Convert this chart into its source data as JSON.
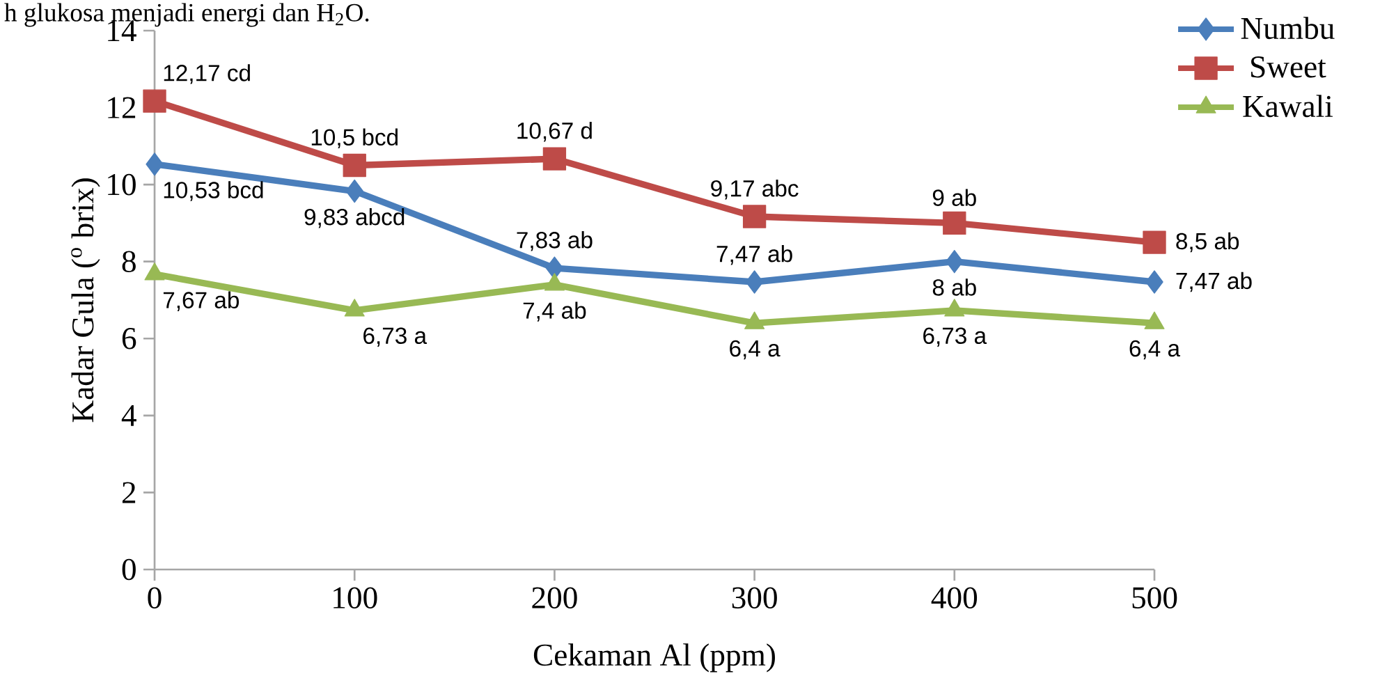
{
  "chart_data": {
    "type": "line",
    "xlabel": "Cekaman Al (ppm)",
    "ylabel": "Kadar Gula ($^{o}$ brix)",
    "annotations": [
      "h glukosa menjadi energi dan H$_{2}$O."
    ],
    "categories": [
      "0",
      "100",
      "200",
      "300",
      "400",
      "500"
    ],
    "ylim": [
      0,
      14
    ],
    "yticks": [
      0,
      2,
      4,
      6,
      8,
      10,
      12,
      14
    ],
    "grid": false,
    "legend": "top right",
    "line_style": "solid",
    "series": [
      {
        "name": "Numbu",
        "color": "#4a7ebb",
        "marker": "diamond",
        "values": [
          10.53,
          9.83,
          7.83,
          7.47,
          8,
          7.47
        ],
        "value_labels": [
          "10,53 bcd",
          "9,83 abcd",
          "7,83 ab",
          "7,47 ab",
          "8 ab",
          "7,47 ab"
        ]
      },
      {
        "name": "Sweet",
        "color": "#be4b48",
        "marker": "square",
        "values": [
          12.17,
          10.5,
          10.67,
          9.17,
          9,
          8.5
        ],
        "value_labels": [
          "12,17 cd",
          "10,5 bcd",
          "10,67 d",
          "9,17 abc",
          "9 ab",
          "8,5 ab"
        ]
      },
      {
        "name": "Kawali",
        "color": "#98b954",
        "marker": "triangle",
        "values": [
          7.67,
          6.73,
          7.4,
          6.4,
          6.73,
          6.4
        ],
        "value_labels": [
          "7,67 ab",
          "6,73 a",
          "7,4 ab",
          "6,4 a",
          "6,73 a",
          "6,4 a"
        ]
      }
    ]
  }
}
